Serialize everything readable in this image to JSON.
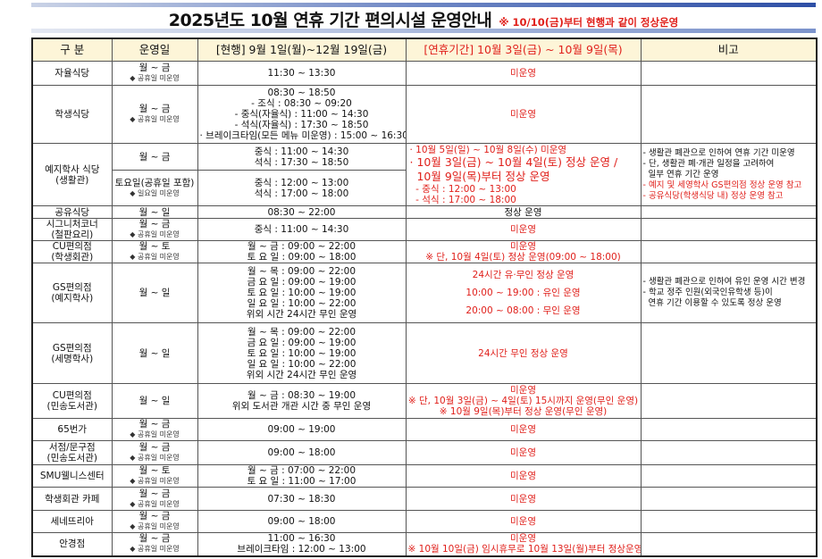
{
  "title": {
    "main": "2025년도 10월 연휴 기간 편의시설 운영안내",
    "note": "※ 10/10(금)부터 현행과 같이 정상운영"
  },
  "colors": {
    "accent_red": "#e0201b",
    "header_bg": "#fdf5d8",
    "stripe_blue": "#2e4fa6"
  },
  "headers": [
    "구 분",
    "운영일",
    "[현행] 9월 1일(월)~12월 19일(금)",
    "[연휴기간] 10월 3일(금) ~ 10월 9일(목)",
    "비고"
  ],
  "rows": [
    {
      "name": [
        "자율식당"
      ],
      "days": "월 ~ 금",
      "days_note": "◆ 공휴일 미운영",
      "current": [
        "11:30 ~ 13:30"
      ],
      "holiday": [
        {
          "t": "미운영",
          "red": true
        }
      ],
      "remarks": []
    },
    {
      "name": [
        "학생식당"
      ],
      "days": "월 ~ 금",
      "days_note": "◆ 공휴일 미운영",
      "current": [
        "08:30 ~ 18:50",
        "- 조식 : 08:30 ~ 09:20",
        "- 중식(자율식) : 11:00 ~ 14:30",
        "- 석식(자율식) : 17:30 ~ 18:50",
        "· 브레이크타임(모든 메뉴 미운영) : 15:00 ~ 16:30"
      ],
      "holiday": [
        {
          "t": "미운영",
          "red": true
        }
      ],
      "remarks": []
    },
    {
      "name": [
        "예지학사 식당",
        "(생활관)"
      ],
      "sub": [
        {
          "days": "월 ~ 금",
          "days_note": "",
          "current": [
            "중식 : 11:00 ~ 14:30",
            "석식 : 17:30 ~ 18:50"
          ]
        },
        {
          "days": "토요일(공휴일 포함)",
          "days_note": "◆ 일요일 미운영",
          "current": [
            "중식 : 12:00 ~ 13:00",
            "석식 : 17:00 ~ 18:00"
          ]
        }
      ],
      "holiday": [
        {
          "t": "· 10월 5일(일) ~ 10월 8일(수) 미운영",
          "red": true,
          "left": true
        },
        {
          "t": "· 10월 3일(금) ~ 10월 4일(토) 정상 운영 /",
          "red": true,
          "left": true,
          "big": true
        },
        {
          "t": "  10월 9일(목)부터 정상 운영",
          "red": true,
          "left": true,
          "big": true
        },
        {
          "t": "  - 중식 : 12:00 ~ 13:00",
          "red": true,
          "left": true
        },
        {
          "t": "  - 석식 : 17:00 ~ 18:00",
          "red": true,
          "left": true
        }
      ],
      "remarks": [
        {
          "t": "- 생활관 폐관으로 인하여 연휴 기간 미운영",
          "red": false
        },
        {
          "t": "- 단, 생활관 폐·개관 일정을 고려하여",
          "red": false
        },
        {
          "t": "  일부 연휴 기간 운영",
          "red": false
        },
        {
          "t": "- 예지 및 세영학사 GS편의점 정상 운영 참고",
          "red": true
        },
        {
          "t": "- 공유식당(학생식당 내) 정상 운영 참고",
          "red": true
        }
      ]
    },
    {
      "name": [
        "공유식당"
      ],
      "days": "월 ~ 일",
      "days_note": "",
      "current": [
        "08:30 ~ 22:00"
      ],
      "holiday": [
        {
          "t": "정상 운영",
          "red": false
        }
      ],
      "remarks": []
    },
    {
      "name": [
        "시그니처코너",
        "(철판요리)"
      ],
      "days": "월 ~ 금",
      "days_note": "◆ 공휴일 미운영",
      "current": [
        "중식 : 11:00 ~ 14:30"
      ],
      "holiday": [
        {
          "t": "미운영",
          "red": true
        }
      ],
      "remarks": []
    },
    {
      "name": [
        "CU편의점",
        "(학생회관)"
      ],
      "days": "월 ~ 토",
      "days_note": "◆ 공휴일 미운영",
      "current": [
        "월 ~ 금 : 09:00 ~ 22:00",
        "토 요 일 : 09:00 ~ 18:00"
      ],
      "holiday": [
        {
          "t": "미운영",
          "red": true
        },
        {
          "t": "※ 단, 10월 4일(토) 정상 운영(09:00 ~ 18:00)",
          "red": true
        }
      ],
      "remarks": []
    },
    {
      "name": [
        "GS편의점",
        "(예지학사)"
      ],
      "days": "월 ~ 일",
      "days_note": "",
      "current": [
        "월 ~ 목 : 09:00 ~ 22:00",
        "금 요 일 : 09:00 ~ 19:00",
        "토 요 일 : 10:00 ~ 19:00",
        "일 요 일 : 10:00 ~ 22:00",
        "위외 시간 24시간 무인 운영"
      ],
      "holiday": [
        {
          "t": "24시간 유·무인 정상 운영",
          "red": true,
          "tall": true
        },
        {
          "t": "10:00 ~ 19:00 : 유인 운영",
          "red": true,
          "tall": true
        },
        {
          "t": "20:00 ~ 08:00 : 무인 운영",
          "red": true,
          "tall": true
        }
      ],
      "remarks": [
        {
          "t": "- 생활관 폐관으로 인하여 유인 운영 시간 변경",
          "red": false
        },
        {
          "t": "- 학교 정주 인원(외국인유학생 등)이",
          "red": false
        },
        {
          "t": "  연휴 기간 이용할 수 있도록 정상 운영",
          "red": false
        }
      ]
    },
    {
      "name": [
        "GS편의점",
        "(세명학사)"
      ],
      "days": "월 ~ 일",
      "days_note": "",
      "current": [
        "월 ~ 목 : 09:00 ~ 22:00",
        "금 요 일 : 09:00 ~ 19:00",
        "토 요 일 : 10:00 ~ 19:00",
        "일 요 일 : 10:00 ~ 22:00",
        "위외 시간 24시간 무인 운영"
      ],
      "holiday": [
        {
          "t": "24시간 무인 정상 운영",
          "red": true
        }
      ],
      "remarks": []
    },
    {
      "name": [
        "CU편의점",
        "(민송도서관)"
      ],
      "days": "월 ~ 일",
      "days_note": "",
      "current": [
        "월 ~ 금 : 08:30 ~ 19:00",
        "위외 도서관 개관 시간 중 무인 운영"
      ],
      "holiday": [
        {
          "t": "미운영",
          "red": true
        },
        {
          "t": "※ 단, 10월 3일(금) ~ 4일(토) 15시까지 운영(무인 운영)",
          "red": true
        },
        {
          "t": "※ 10월 9일(목)부터 정상 운영(무인 운영)",
          "red": true
        }
      ],
      "remarks": []
    },
    {
      "name": [
        "65번가"
      ],
      "days": "월 ~ 금",
      "days_note": "◆ 공휴일 미운영",
      "current": [
        "09:00 ~ 19:00"
      ],
      "holiday": [
        {
          "t": "미운영",
          "red": true
        }
      ],
      "remarks": []
    },
    {
      "name": [
        "서점/문구점",
        "(민송도서관)"
      ],
      "days": "월 ~ 금",
      "days_note": "◆ 공휴일 미운영",
      "current": [
        "09:00 ~ 18:00"
      ],
      "holiday": [
        {
          "t": "미운영",
          "red": true
        }
      ],
      "remarks": []
    },
    {
      "name": [
        "SMU웰니스센터"
      ],
      "days": "월 ~ 토",
      "days_note": "◆ 공휴일 미운영",
      "current": [
        "월 ~ 금 : 07:00 ~ 22:00",
        "토 요 일 : 11:00 ~ 17:00"
      ],
      "holiday": [
        {
          "t": "미운영",
          "red": true
        }
      ],
      "remarks": []
    },
    {
      "name": [
        "학생회관 카페"
      ],
      "days": "월 ~ 금",
      "days_note": "◆ 공휴일 미운영",
      "current": [
        "07:30 ~ 18:30"
      ],
      "holiday": [
        {
          "t": "미운영",
          "red": true
        }
      ],
      "remarks": []
    },
    {
      "name": [
        "세네뜨리아"
      ],
      "days": "월 ~ 금",
      "days_note": "◆ 공휴일 미운영",
      "current": [
        "09:00 ~ 18:00"
      ],
      "holiday": [
        {
          "t": "미운영",
          "red": true
        }
      ],
      "remarks": []
    },
    {
      "name": [
        "안경점"
      ],
      "days": "월 ~ 금",
      "days_note": "◆ 공휴일 미운영",
      "current": [
        "11:00 ~ 16:30",
        "브레이크타임 : 12:00 ~ 13:00"
      ],
      "holiday": [
        {
          "t": "미운영",
          "red": true
        },
        {
          "t": "※ 10월 10일(금) 임시휴무로 10월 13일(월)부터 정상운영",
          "red": true
        }
      ],
      "remarks": []
    }
  ]
}
